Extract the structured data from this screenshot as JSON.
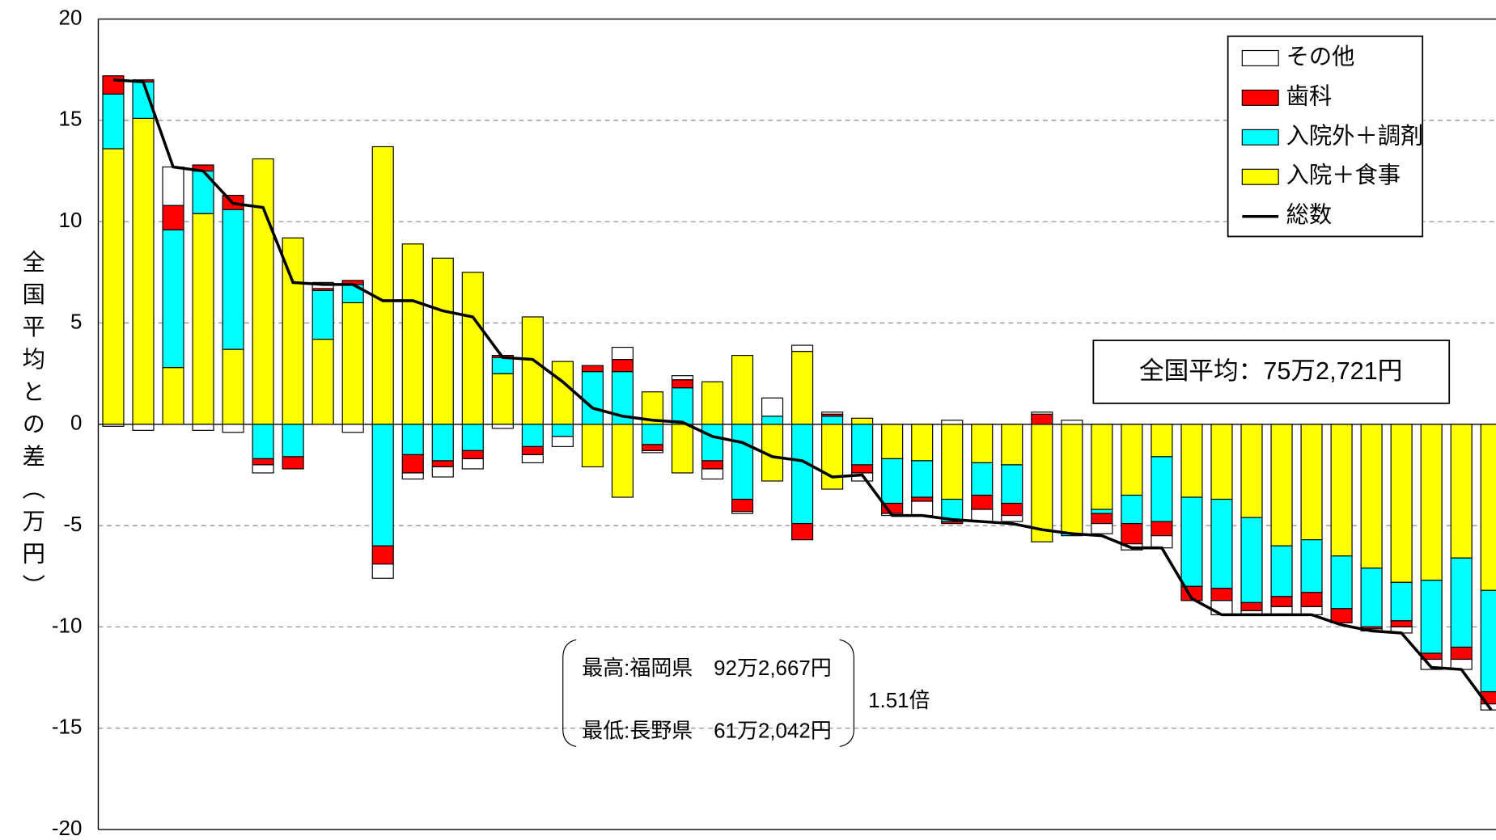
{
  "chart_data": {
    "type": "bar",
    "y_label": "全国平均との差（万円）",
    "categories": [
      null,
      null,
      null,
      null,
      null,
      null,
      null,
      null,
      null,
      null,
      null,
      null,
      null,
      null,
      null,
      null,
      null,
      null,
      null,
      null,
      null,
      null,
      null,
      null,
      null,
      null,
      null,
      null,
      null,
      null,
      null,
      null,
      null,
      null,
      null,
      null,
      null,
      null,
      null,
      null,
      null,
      null,
      null,
      null,
      null,
      null,
      null
    ],
    "series": [
      {
        "name": "その他",
        "color": "#ffffff",
        "values": [
          -0.1,
          -0.3,
          1.9,
          -0.3,
          -0.4,
          -0.4,
          0,
          0.3,
          -0.4,
          -0.7,
          -0.3,
          -0.5,
          -0.5,
          -0.2,
          -0.4,
          -0.5,
          0,
          0.6,
          -0.1,
          0.2,
          -0.5,
          -0.1,
          0.9,
          0.3,
          0.1,
          -0.4,
          -0.1,
          -0.7,
          0.2,
          -0.6,
          -0.3,
          0.1,
          0.2,
          -0.5,
          -0.3,
          -0.6,
          0,
          -0.7,
          -0.2,
          -0.4,
          -0.4,
          0,
          -0.1,
          -0.3,
          -0.5,
          -0.5,
          -0.3
        ]
      },
      {
        "name": "歯科",
        "color": "#ff0000",
        "values": [
          0.9,
          0.1,
          1.2,
          0.3,
          0.7,
          -0.3,
          -0.6,
          0.1,
          0.2,
          -0.9,
          -0.9,
          -0.3,
          -0.4,
          0.1,
          -0.4,
          0,
          0.3,
          0.6,
          -0.3,
          0.4,
          -0.4,
          -0.6,
          0,
          -0.8,
          0.1,
          -0.4,
          -0.5,
          -0.2,
          -0.1,
          -0.7,
          -0.6,
          0.5,
          0,
          -0.5,
          -1.0,
          -0.7,
          -0.7,
          -0.6,
          -0.4,
          -0.5,
          -0.7,
          -0.7,
          -0.1,
          -0.3,
          -0.3,
          -0.6,
          -0.6
        ]
      },
      {
        "name": "入院外＋調剤",
        "color": "#00ffff",
        "values": [
          2.7,
          1.8,
          6.8,
          2.1,
          6.9,
          -1.7,
          -1.6,
          2.4,
          0.9,
          -6.0,
          -1.5,
          -1.8,
          -1.3,
          0.8,
          -1.1,
          -0.6,
          2.6,
          2.6,
          -1.0,
          1.8,
          -1.8,
          -3.7,
          0.4,
          -4.9,
          0.4,
          -2.0,
          -2.2,
          -1.8,
          -1.1,
          -1.6,
          -1.9,
          0,
          -0.1,
          -0.2,
          -1.4,
          -3.2,
          -4.4,
          -4.4,
          -4.2,
          -2.5,
          -2.6,
          -2.6,
          -2.9,
          -1.9,
          -3.6,
          -4.4,
          -5.0
        ]
      },
      {
        "name": "入院＋食事",
        "color": "#ffff00",
        "values": [
          13.6,
          15.1,
          2.8,
          10.4,
          3.7,
          13.1,
          9.2,
          4.2,
          6.0,
          13.7,
          8.9,
          8.2,
          7.5,
          2.5,
          5.3,
          3.1,
          -2.1,
          -3.6,
          1.6,
          -2.4,
          2.1,
          3.4,
          -2.8,
          3.6,
          -3.2,
          0.3,
          -1.7,
          -1.8,
          -3.7,
          -1.9,
          -2.0,
          -5.8,
          -5.4,
          -4.2,
          -3.5,
          -1.6,
          -3.6,
          -3.7,
          -4.6,
          -6.0,
          -5.7,
          -6.5,
          -7.1,
          -7.8,
          -7.7,
          -6.6,
          -8.2
        ]
      },
      {
        "name": "総数",
        "color": "#000000",
        "type": "line",
        "values": [
          17.0,
          16.9,
          12.7,
          12.5,
          10.9,
          10.7,
          7.0,
          6.9,
          6.9,
          6.1,
          6.1,
          5.6,
          5.3,
          3.3,
          3.2,
          2.1,
          0.8,
          0.4,
          0.2,
          0.1,
          -0.6,
          -0.9,
          -1.6,
          -1.8,
          -2.6,
          -2.5,
          -4.5,
          -4.5,
          -4.7,
          -4.8,
          -4.9,
          -5.2,
          -5.4,
          -5.5,
          -6.1,
          -6.1,
          -8.6,
          -9.4,
          -9.4,
          -9.4,
          -9.4,
          -9.9,
          -10.2,
          -10.3,
          -12.0,
          -12.1,
          -14.1
        ]
      }
    ],
    "ylim": [
      -20,
      20
    ],
    "yticks": [
      -20,
      -15,
      -10,
      -5,
      0,
      5,
      10,
      15,
      20
    ],
    "grid": true,
    "legend": "upper right",
    "annotations": {
      "average": "全国平均：75万2,721円",
      "highest": "最高:福岡県　92万2,667円",
      "lowest": "最低:長野県　61万2,042円",
      "ratio": "1.51倍"
    }
  }
}
